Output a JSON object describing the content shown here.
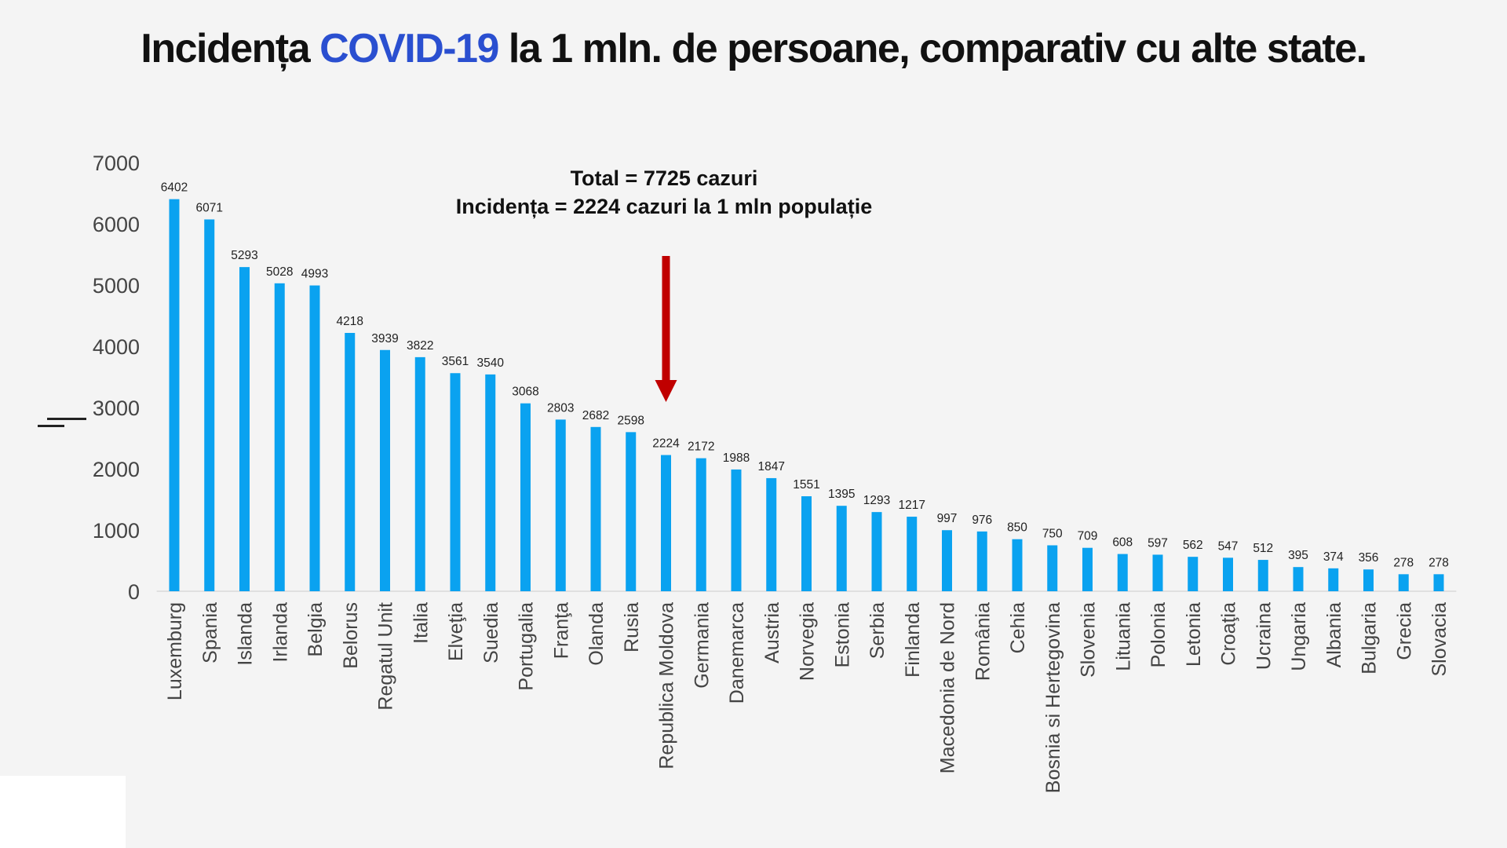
{
  "title": {
    "prefix": "Incidența ",
    "highlight": "COVID-19",
    "suffix": " la 1 mln. de persoane, comparativ cu alte state."
  },
  "colors": {
    "bar": "#0aa2f0",
    "title_highlight": "#2a4fd0",
    "arrow": "#c00000"
  },
  "chart_data": {
    "type": "bar",
    "title": "Incidența COVID-19 la 1 mln. de persoane, comparativ cu alte state.",
    "xlabel": "",
    "ylabel": "",
    "ylim": [
      0,
      7000
    ],
    "yticks": [
      0,
      1000,
      2000,
      3000,
      4000,
      5000,
      6000,
      7000
    ],
    "grid": false,
    "categories": [
      "Luxemburg",
      "Spania",
      "Islanda",
      "Irlanda",
      "Belgia",
      "Belorus",
      "Regatul Unit",
      "Italia",
      "Elveţia",
      "Suedia",
      "Portugalia",
      "Franţa",
      "Olanda",
      "Rusia",
      "Republica Moldova",
      "Germania",
      "Danemarca",
      "Austria",
      "Norvegia",
      "Estonia",
      "Serbia",
      "Finlanda",
      "Macedonia de Nord",
      "România",
      "Cehia",
      "Bosnia si Hertegovina",
      "Slovenia",
      "Lituania",
      "Polonia",
      "Letonia",
      "Croaţia",
      "Ucraina",
      "Ungaria",
      "Albania",
      "Bulgaria",
      "Grecia",
      "Slovacia"
    ],
    "values": [
      6402,
      6071,
      5293,
      5028,
      4993,
      4218,
      3939,
      3822,
      3561,
      3540,
      3068,
      2803,
      2682,
      2598,
      2224,
      2172,
      1988,
      1847,
      1551,
      1395,
      1293,
      1217,
      997,
      976,
      850,
      750,
      709,
      608,
      597,
      562,
      547,
      512,
      395,
      374,
      356,
      278,
      278
    ],
    "annotation": {
      "line1": "Total = 7725  cazuri",
      "line2": "Incidența = 2224 cazuri la 1 mln populație",
      "arrow_target": "Republica Moldova"
    }
  }
}
